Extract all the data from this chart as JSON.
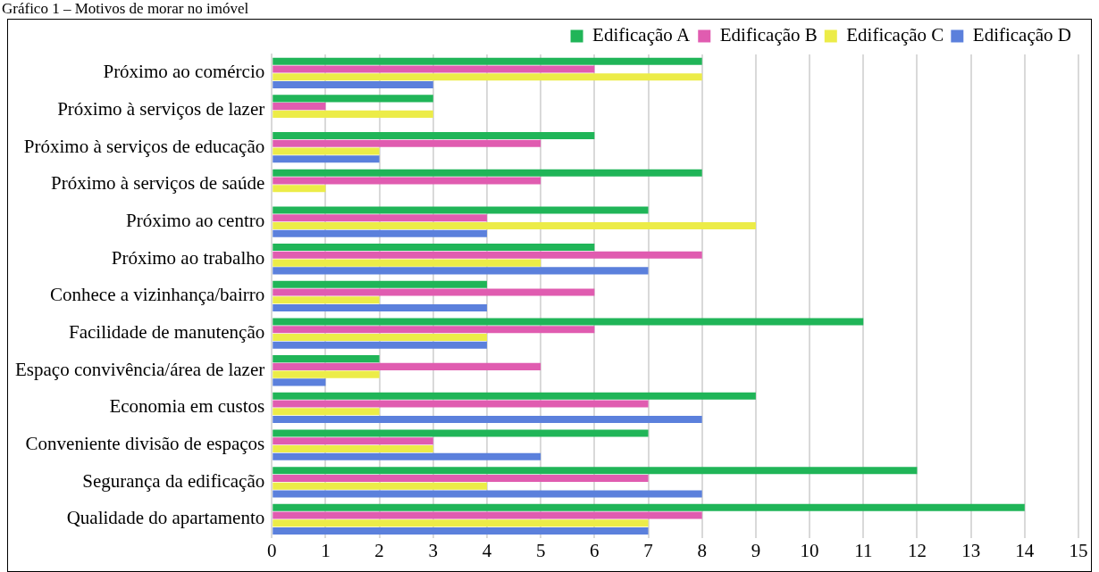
{
  "chart_data": {
    "type": "bar",
    "orientation": "horizontal",
    "title": "Gráfico 1 – Motivos de morar no imóvel",
    "categories": [
      "Próximo ao comércio",
      "Próximo à serviços de lazer",
      "Próximo à serviços de educação",
      "Próximo à serviços de saúde",
      "Próximo ao centro",
      "Próximo ao trabalho",
      "Conhece a vizinhança/bairro",
      "Facilidade de manutenção",
      "Espaço convivência/área de lazer",
      "Economia em custos",
      "Conveniente divisão de espaços",
      "Segurança da edificação",
      "Qualidade do apartamento"
    ],
    "series": [
      {
        "name": "Edificação A",
        "color": "#20b558",
        "values": [
          8,
          3,
          6,
          8,
          7,
          6,
          4,
          11,
          2,
          9,
          7,
          12,
          14
        ]
      },
      {
        "name": "Edificação B",
        "color": "#e05cb0",
        "values": [
          6,
          1,
          5,
          5,
          4,
          8,
          6,
          6,
          5,
          7,
          3,
          7,
          8
        ]
      },
      {
        "name": "Edificação C",
        "color": "#ecec48",
        "values": [
          8,
          3,
          2,
          1,
          9,
          5,
          2,
          4,
          2,
          2,
          3,
          4,
          7
        ]
      },
      {
        "name": "Edificação D",
        "color": "#5b80dc",
        "values": [
          3,
          null,
          2,
          null,
          4,
          7,
          4,
          4,
          1,
          8,
          5,
          8,
          7
        ]
      }
    ],
    "xlim": [
      0,
      15
    ],
    "xticks": [
      0,
      1,
      2,
      3,
      4,
      5,
      6,
      7,
      8,
      9,
      10,
      11,
      12,
      13,
      14,
      15
    ],
    "grid": "x",
    "legend": "top right"
  }
}
